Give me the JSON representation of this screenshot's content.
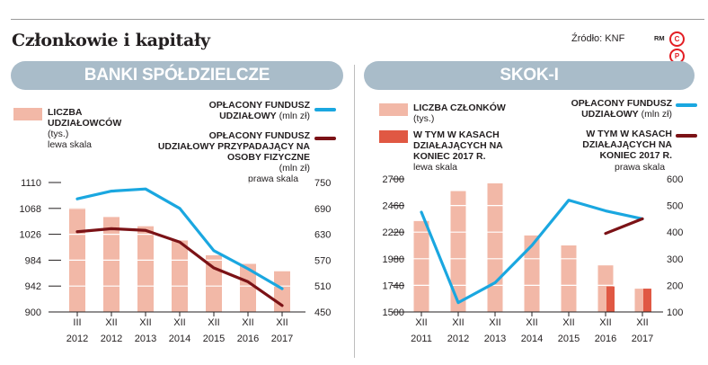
{
  "page": {
    "title": "Członkowie i kapitały",
    "source": "Źródło: KNF",
    "publisher_mark": "RM",
    "logo_letters": [
      "C",
      "P"
    ]
  },
  "colors": {
    "bar": "#f2b8a7",
    "bar_dark": "#e05843",
    "line_blue": "#1aa7e0",
    "line_red": "#7b1216",
    "banner": "#a9bcc9",
    "grid": "#ffffff",
    "axis": "#231f20"
  },
  "left_panel": {
    "banner": "BANKI SPÓŁDZIELCZE",
    "legend": {
      "bars_label": "LICZBA UDZIAŁOWCÓW",
      "bars_unit": "(tys.)",
      "bars_scale": "lewa skala",
      "blue_label": "OPŁACONY FUNDUSZ UDZIAŁOWY",
      "blue_unit": "(mln zł)",
      "red_label": "OPŁACONY FUNDUSZ UDZIAŁOWY PRZYPADAJĄCY NA OSOBY FIZYCZNE",
      "red_unit": "(mln zł)",
      "right_scale": "prawa skala"
    }
  },
  "right_panel": {
    "banner": "SKOK-I",
    "legend": {
      "bars_label": "LICZBA CZŁONKÓW",
      "bars_unit": "(tys.)",
      "dark_bars_label": "W TYM W KASACH DZIAŁAJĄCYCH NA KONIEC 2017 R.",
      "dark_bars_scale": "lewa skala",
      "blue_label": "OPŁACONY FUNDUSZ UDZIAŁOWY",
      "blue_unit": "(mln zł)",
      "red_label": "W TYM W KASACH DZIAŁAJĄCYCH NA KONIEC 2017 R.",
      "right_scale": "prawa skala"
    }
  },
  "chart_data": [
    {
      "type": "bar",
      "title": "BANKI SPÓŁDZIELCZE",
      "categories": [
        "III 2012",
        "XII 2012",
        "XII 2013",
        "XII 2014",
        "XII 2015",
        "XII 2016",
        "XII 2017"
      ],
      "category_lines": [
        [
          "III",
          "2012"
        ],
        [
          "XII",
          "2012"
        ],
        [
          "XII",
          "2013"
        ],
        [
          "XII",
          "2014"
        ],
        [
          "XII",
          "2015"
        ],
        [
          "XII",
          "2016"
        ],
        [
          "XII",
          "2017"
        ]
      ],
      "left_axis": {
        "ylim": [
          900,
          1110
        ],
        "ticks": [
          900,
          942,
          984,
          1026,
          1068,
          1110
        ]
      },
      "right_axis": {
        "ylim": [
          450,
          750
        ],
        "ticks": [
          450,
          510,
          570,
          630,
          690,
          750
        ]
      },
      "series": [
        {
          "name": "LICZBA UDZIAŁOWCÓW",
          "kind": "bar",
          "axis": "left",
          "values": [
            1069,
            1054,
            1039,
            1016,
            992,
            978,
            966
          ]
        },
        {
          "name": "OPŁACONY FUNDUSZ UDZIAŁOWY",
          "kind": "line",
          "axis": "right",
          "values": [
            712,
            730,
            735,
            690,
            592,
            550,
            504
          ]
        },
        {
          "name": "OPŁACONY FUNDUSZ UDZIAŁOWY PRZYPADAJĄCY NA OSOBY FIZYCZNE",
          "kind": "line",
          "axis": "right",
          "values": [
            636,
            643,
            639,
            612,
            552,
            520,
            465
          ]
        }
      ]
    },
    {
      "type": "bar",
      "title": "SKOK-I",
      "categories": [
        "XII 2011",
        "XII 2012",
        "XII 2013",
        "XII 2014",
        "XII 2015",
        "XII 2016",
        "XII 2017"
      ],
      "category_lines": [
        [
          "XII",
          "2011"
        ],
        [
          "XII",
          "2012"
        ],
        [
          "XII",
          "2013"
        ],
        [
          "XII",
          "2014"
        ],
        [
          "XII",
          "2015"
        ],
        [
          "XII",
          "2016"
        ],
        [
          "XII",
          "2017"
        ]
      ],
      "left_axis": {
        "ylim": [
          1500,
          2700
        ],
        "ticks": [
          1500,
          1740,
          1980,
          2220,
          2460,
          2700
        ]
      },
      "right_axis": {
        "ylim": [
          100,
          600
        ],
        "ticks": [
          100,
          200,
          300,
          400,
          500,
          600
        ]
      },
      "series": [
        {
          "name": "LICZBA CZŁONKÓW",
          "kind": "bar",
          "axis": "left",
          "values": [
            2320,
            2590,
            2660,
            2190,
            2100,
            1920,
            1710
          ]
        },
        {
          "name": "W TYM W KASACH DZIAŁAJĄCYCH NA KONIEC 2017 R.",
          "kind": "bar",
          "axis": "left",
          "values": [
            null,
            null,
            null,
            null,
            null,
            1730,
            1710
          ]
        },
        {
          "name": "OPŁACONY FUNDUSZ UDZIAŁOWY",
          "kind": "line",
          "axis": "right",
          "values": [
            475,
            135,
            210,
            350,
            520,
            480,
            450
          ]
        },
        {
          "name": "W TYM W KASACH DZIAŁAJĄCYCH NA KONIEC 2017 R.",
          "kind": "line",
          "axis": "right",
          "values": [
            null,
            null,
            null,
            null,
            null,
            395,
            450
          ]
        }
      ]
    }
  ]
}
